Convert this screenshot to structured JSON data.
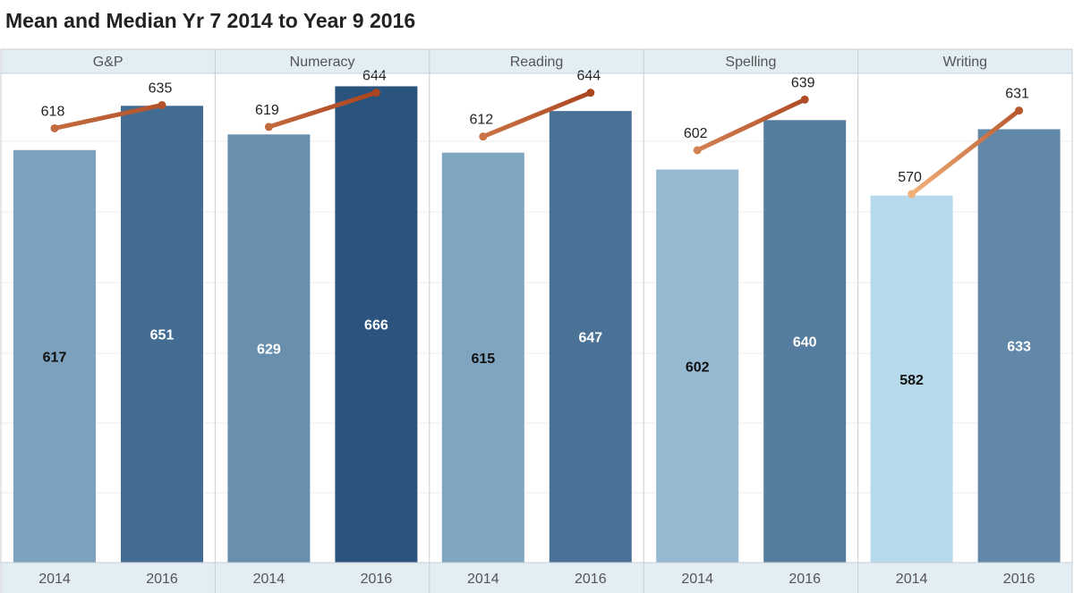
{
  "title": "Mean and Median Yr 7 2014 to Year 9 2016",
  "chart_data": {
    "type": "bar",
    "panels": [
      "G&P",
      "Numeracy",
      "Reading",
      "Spelling",
      "Writing"
    ],
    "categories": [
      "2014",
      "2016"
    ],
    "ylim": [
      0,
      700
    ],
    "grid": true,
    "series": [
      {
        "mark": "bar",
        "values": [
          [
            617,
            651
          ],
          [
            629,
            666
          ],
          [
            615,
            647
          ],
          [
            602,
            640
          ],
          [
            582,
            633
          ]
        ]
      },
      {
        "mark": "line",
        "values": [
          [
            618,
            635
          ],
          [
            619,
            644
          ],
          [
            612,
            644
          ],
          [
            602,
            639
          ],
          [
            570,
            631
          ]
        ]
      }
    ]
  }
}
